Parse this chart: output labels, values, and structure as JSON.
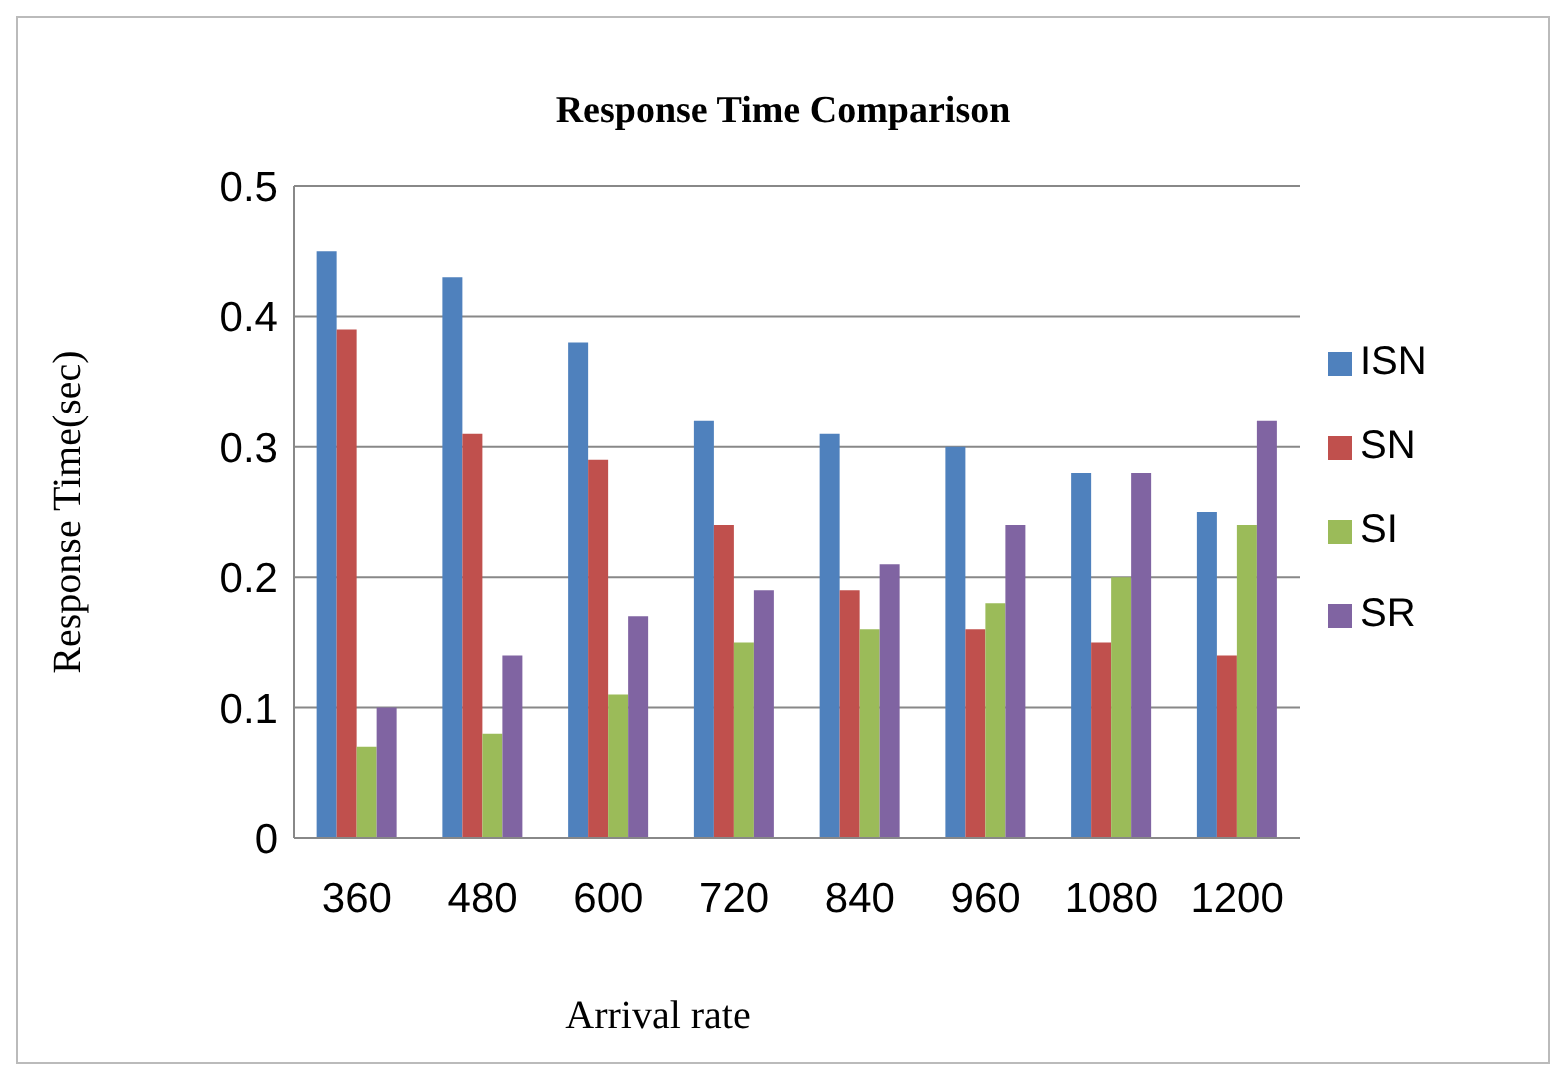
{
  "chart_data": {
    "type": "bar",
    "title": "Response Time Comparison",
    "xlabel": "Arrival rate",
    "ylabel": "Response Time(sec)",
    "categories": [
      "360",
      "480",
      "600",
      "720",
      "840",
      "960",
      "1080",
      "1200"
    ],
    "series": [
      {
        "name": "ISN",
        "color": "#4f81bd",
        "values": [
          0.45,
          0.43,
          0.38,
          0.32,
          0.31,
          0.3,
          0.28,
          0.25
        ]
      },
      {
        "name": "SN",
        "color": "#c0504d",
        "values": [
          0.39,
          0.31,
          0.29,
          0.24,
          0.19,
          0.16,
          0.15,
          0.14
        ]
      },
      {
        "name": "SI",
        "color": "#9bbb59",
        "values": [
          0.07,
          0.08,
          0.11,
          0.15,
          0.16,
          0.18,
          0.2,
          0.24
        ]
      },
      {
        "name": "SR",
        "color": "#8064a2",
        "values": [
          0.1,
          0.14,
          0.17,
          0.19,
          0.21,
          0.24,
          0.28,
          0.32
        ]
      }
    ],
    "ylim": [
      0,
      0.5
    ],
    "yticks": [
      0,
      0.1,
      0.2,
      0.3,
      0.4,
      0.5
    ],
    "grid": "y",
    "legend": "right"
  }
}
